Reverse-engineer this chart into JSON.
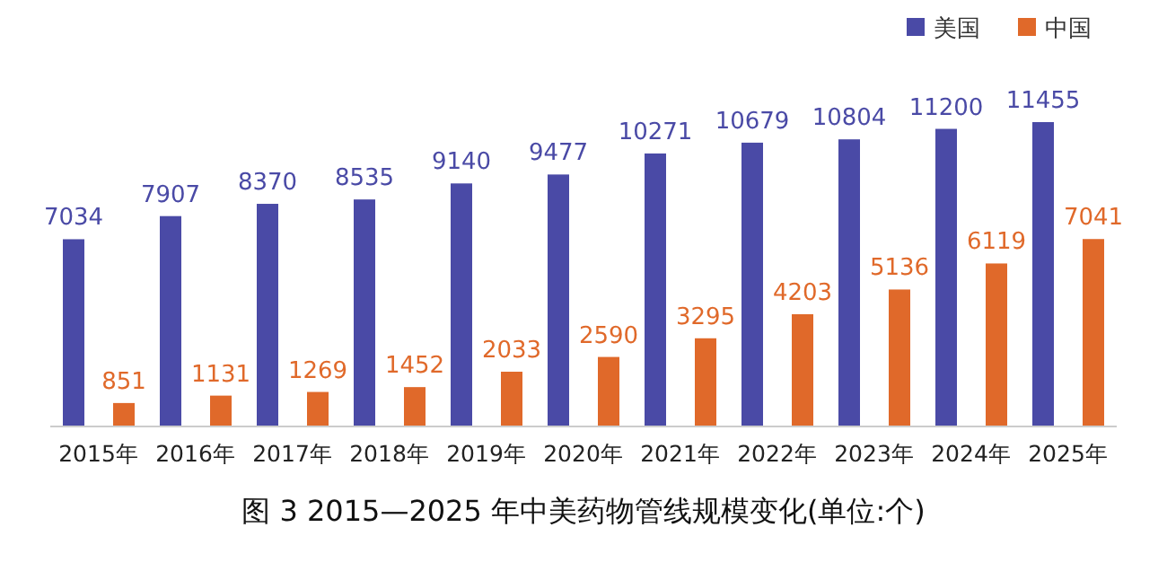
{
  "chart_data": {
    "type": "bar",
    "title": "图 3 2015—2025 年中美药物管线规模变化(单位:个)",
    "categories": [
      "2015年",
      "2016年",
      "2017年",
      "2018年",
      "2019年",
      "2020年",
      "2021年",
      "2022年",
      "2023年",
      "2024年",
      "2025年"
    ],
    "series": [
      {
        "name": "美国",
        "color": "#4a4aa6",
        "values": [
          7034,
          7907,
          8370,
          8535,
          9140,
          9477,
          10271,
          10679,
          10804,
          11200,
          11455
        ]
      },
      {
        "name": "中国",
        "color": "#e0692a",
        "values": [
          851,
          1131,
          1269,
          1452,
          2033,
          2590,
          3295,
          4203,
          5136,
          6119,
          7041
        ]
      }
    ],
    "data_labels": true,
    "legend": "top right"
  }
}
